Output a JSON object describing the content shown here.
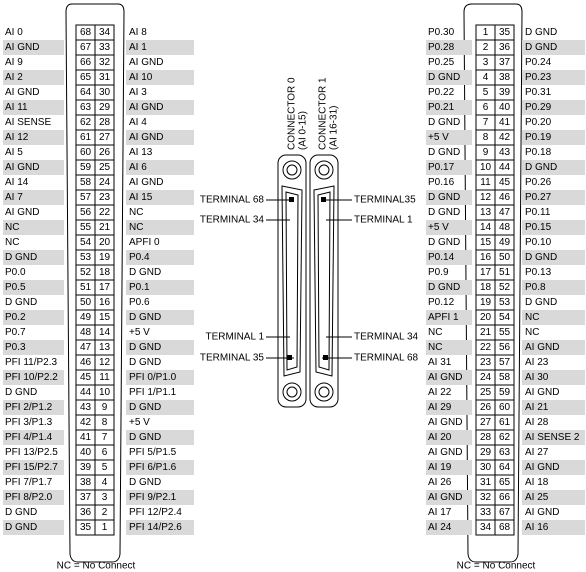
{
  "left_connector": {
    "rows": [
      [
        "AI 0",
        68,
        34,
        "AI 8"
      ],
      [
        "AI GND",
        67,
        33,
        "AI 1"
      ],
      [
        "AI 9",
        66,
        32,
        "AI GND"
      ],
      [
        "AI 2",
        65,
        31,
        "AI 10"
      ],
      [
        "AI GND",
        64,
        30,
        "AI 3"
      ],
      [
        "AI 11",
        63,
        29,
        "AI GND"
      ],
      [
        "AI SENSE",
        62,
        28,
        "AI 4"
      ],
      [
        "AI 12",
        61,
        27,
        "AI GND"
      ],
      [
        "AI 5",
        60,
        26,
        "AI 13"
      ],
      [
        "AI GND",
        59,
        25,
        "AI 6"
      ],
      [
        "AI 14",
        58,
        24,
        "AI GND"
      ],
      [
        "AI 7",
        57,
        23,
        "AI 15"
      ],
      [
        "AI GND",
        56,
        22,
        "NC"
      ],
      [
        "NC",
        55,
        21,
        "NC"
      ],
      [
        "NC",
        54,
        20,
        "APFI 0"
      ],
      [
        "D GND",
        53,
        19,
        "P0.4"
      ],
      [
        "P0.0",
        52,
        18,
        "D GND"
      ],
      [
        "P0.5",
        51,
        17,
        "P0.1"
      ],
      [
        "D GND",
        50,
        16,
        "P0.6"
      ],
      [
        "P0.2",
        49,
        15,
        "D GND"
      ],
      [
        "P0.7",
        48,
        14,
        "+5 V"
      ],
      [
        "P0.3",
        47,
        13,
        "D GND"
      ],
      [
        "PFI 11/P2.3",
        46,
        12,
        "D GND"
      ],
      [
        "PFI 10/P2.2",
        45,
        11,
        "PFI 0/P1.0"
      ],
      [
        "D GND",
        44,
        10,
        "PFI 1/P1.1"
      ],
      [
        "PFI 2/P1.2",
        43,
        9,
        "D GND"
      ],
      [
        "PFI 3/P1.3",
        42,
        8,
        "+5 V"
      ],
      [
        "PFI 4/P1.4",
        41,
        7,
        "D GND"
      ],
      [
        "PFI 13/P2.5",
        40,
        6,
        "PFI 5/P1.5"
      ],
      [
        "PFI 15/P2.7",
        39,
        5,
        "PFI 6/P1.6"
      ],
      [
        "PFI 7/P1.7",
        38,
        4,
        "D GND"
      ],
      [
        "PFI 8/P2.0",
        37,
        3,
        "PFI 9/P2.1"
      ],
      [
        "D GND",
        36,
        2,
        "PFI 12/P2.4"
      ],
      [
        "D GND",
        35,
        1,
        "PFI 14/P2.6"
      ]
    ],
    "footnote": "NC = No Connect"
  },
  "right_connector": {
    "rows": [
      [
        "P0.30",
        1,
        35,
        "D GND"
      ],
      [
        "P0.28",
        2,
        36,
        "D GND"
      ],
      [
        "P0.25",
        3,
        37,
        "P0.24"
      ],
      [
        "D GND",
        4,
        38,
        "P0.23"
      ],
      [
        "P0.22",
        5,
        39,
        "P0.31"
      ],
      [
        "P0.21",
        6,
        40,
        "P0.29"
      ],
      [
        "D GND",
        7,
        41,
        "P0.20"
      ],
      [
        "+5 V",
        8,
        42,
        "P0.19"
      ],
      [
        "D GND",
        9,
        43,
        "P0.18"
      ],
      [
        "P0.17",
        10,
        44,
        "D GND"
      ],
      [
        "P0.16",
        11,
        45,
        "P0.26"
      ],
      [
        "D GND",
        12,
        46,
        "P0.27"
      ],
      [
        "D GND",
        13,
        47,
        "P0.11"
      ],
      [
        "+5 V",
        14,
        48,
        "P0.15"
      ],
      [
        "D GND",
        15,
        49,
        "P0.10"
      ],
      [
        "P0.14",
        16,
        50,
        "D GND"
      ],
      [
        "P0.9",
        17,
        51,
        "P0.13"
      ],
      [
        "D GND",
        18,
        52,
        "P0.8"
      ],
      [
        "P0.12",
        19,
        53,
        "D GND"
      ],
      [
        "APFI 1",
        20,
        54,
        "NC"
      ],
      [
        "NC",
        21,
        55,
        "NC"
      ],
      [
        "NC",
        22,
        56,
        "AI GND"
      ],
      [
        "AI 31",
        23,
        57,
        "AI 23"
      ],
      [
        "AI GND",
        24,
        58,
        "AI 30"
      ],
      [
        "AI 22",
        25,
        59,
        "AI GND"
      ],
      [
        "AI 29",
        26,
        60,
        "AI 21"
      ],
      [
        "AI GND",
        27,
        61,
        "AI 28"
      ],
      [
        "AI 20",
        28,
        62,
        "AI SENSE 2"
      ],
      [
        "AI GND",
        29,
        63,
        "AI 27"
      ],
      [
        "AI 19",
        30,
        64,
        "AI GND"
      ],
      [
        "AI 26",
        31,
        65,
        "AI 18"
      ],
      [
        "AI GND",
        32,
        66,
        "AI 25"
      ],
      [
        "AI 17",
        33,
        67,
        "AI GND"
      ],
      [
        "AI 24",
        34,
        68,
        "AI 16"
      ]
    ],
    "footnote": "NC = No Connect"
  },
  "center": {
    "connector0": {
      "title": "CONNECTOR 0",
      "subtitle": "(AI 0-15)",
      "terminals": [
        "TERMINAL 68",
        "TERMINAL 34",
        "TERMINAL 1",
        "TERMINAL 35"
      ]
    },
    "connector1": {
      "title": "CONNECTOR 1",
      "subtitle": "(AI 16-31)",
      "terminals": [
        "TERMINAL35",
        "TERMINAL 1",
        "TERMINAL 34",
        "TERMINAL 68"
      ]
    }
  }
}
